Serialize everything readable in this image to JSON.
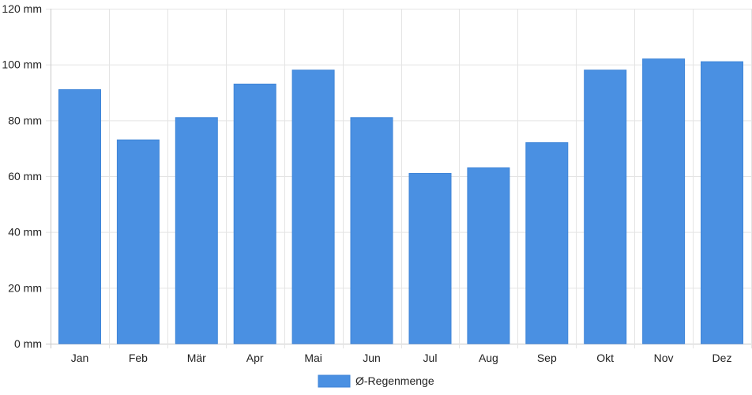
{
  "chart_data": {
    "type": "bar",
    "categories": [
      "Jan",
      "Feb",
      "Mär",
      "Apr",
      "Mai",
      "Jun",
      "Jul",
      "Aug",
      "Sep",
      "Okt",
      "Nov",
      "Dez"
    ],
    "series": [
      {
        "name": "Ø-Regenmenge",
        "values": [
          91,
          73,
          81,
          93,
          98,
          81,
          61,
          63,
          72,
          98,
          102,
          101
        ]
      }
    ],
    "ylim": [
      0,
      120
    ],
    "yticks": [
      0,
      20,
      40,
      60,
      80,
      100,
      120
    ],
    "ytick_labels": [
      "0 mm",
      "20 mm",
      "40 mm",
      "60 mm",
      "80 mm",
      "100 mm",
      "120 mm"
    ],
    "grid": true,
    "legend": "bottom",
    "colors": {
      "bar": "#4a90e2",
      "bar_border": "#3f85d8",
      "grid": "#e4e4e4",
      "axis": "#c8c8c8"
    }
  }
}
